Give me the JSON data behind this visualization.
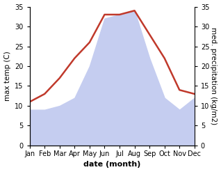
{
  "months": [
    "Jan",
    "Feb",
    "Mar",
    "Apr",
    "May",
    "Jun",
    "Jul",
    "Aug",
    "Sep",
    "Oct",
    "Nov",
    "Dec"
  ],
  "temperature": [
    11,
    13,
    17,
    22,
    26,
    33,
    33,
    34,
    28,
    22,
    14,
    13
  ],
  "precipitation": [
    9,
    9,
    10,
    12,
    20,
    32,
    33,
    34,
    22,
    12,
    9,
    12
  ],
  "temp_color": "#c0392b",
  "precip_fill_color": "#c5cdf0",
  "left_ylim": [
    0,
    35
  ],
  "right_ylim": [
    0,
    35
  ],
  "left_yticks": [
    0,
    5,
    10,
    15,
    20,
    25,
    30,
    35
  ],
  "right_yticks": [
    0,
    5,
    10,
    15,
    20,
    25,
    30,
    35
  ],
  "xlabel": "date (month)",
  "ylabel_left": "max temp (C)",
  "ylabel_right": "med. precipitation (kg/m2)",
  "background_color": "#ffffff",
  "plot_bg_color": "#ffffff",
  "temp_linewidth": 1.8,
  "tick_fontsize": 7,
  "xlabel_fontsize": 8,
  "ylabel_fontsize": 7.5
}
